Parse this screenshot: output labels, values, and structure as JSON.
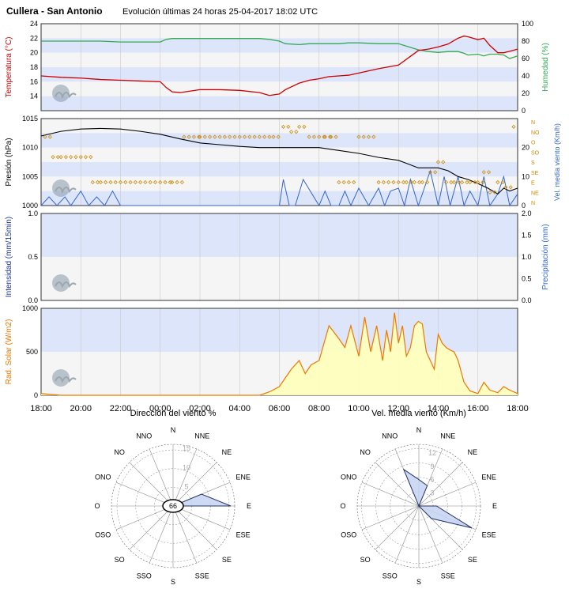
{
  "header": {
    "station": "Cullera - San Antonio",
    "subtitle": "Evolución últimas 24 horas 25-04-2017 18:02 UTC"
  },
  "colors": {
    "band_blue": "#dde5fb",
    "band_grey": "#f5f5f5",
    "temperature": "#cc0000",
    "humidity": "#33aa55",
    "pressure": "#000000",
    "wind_speed": "#3366cc",
    "wind_dir": "#cc8800",
    "solar_line": "#ee7700",
    "solar_fill": "#ffffbb",
    "rose_fill": "#c5d3f2",
    "rose_stroke": "#223366"
  },
  "x_ticks": [
    "18:00",
    "20:00",
    "22:00",
    "00:00",
    "02:00",
    "04:00",
    "06:00",
    "08:00",
    "10:00",
    "12:00",
    "14:00",
    "16:00",
    "18:00"
  ],
  "chart_data": [
    {
      "type": "line",
      "panel": "temp_humidity",
      "ylabel": "Temperatura (°C)",
      "ylabel2": "Humedad (%)",
      "ylim": [
        12,
        24
      ],
      "ylim2": [
        0,
        100
      ],
      "y_ticks": [
        "14",
        "16",
        "18",
        "20",
        "22",
        "24"
      ],
      "y2_ticks": [
        "0",
        "20",
        "40",
        "60",
        "80",
        "100"
      ],
      "x": [
        0,
        1,
        2,
        3,
        4,
        5,
        6,
        6.3,
        6.6,
        7,
        8,
        9,
        10,
        11,
        11.5,
        12,
        12.3,
        13,
        13.5,
        14,
        14.5,
        15,
        15.5,
        16,
        17,
        18,
        19,
        19.5,
        20,
        20.5,
        21,
        21.3,
        21.5,
        22,
        22.3,
        22.6,
        23,
        23.3,
        23.6,
        24
      ],
      "series": [
        {
          "name": "Temperatura",
          "axis": "left",
          "values": [
            16.8,
            16.6,
            16.5,
            16.3,
            16.2,
            16.1,
            16.0,
            15.2,
            14.6,
            14.5,
            14.9,
            14.9,
            14.8,
            14.5,
            14.1,
            14.3,
            14.9,
            15.8,
            16.2,
            16.4,
            16.7,
            16.8,
            16.9,
            17.2,
            17.8,
            18.3,
            20.3,
            20.5,
            20.8,
            21.2,
            22.0,
            22.3,
            22.2,
            21.8,
            22.0,
            21.0,
            20.0,
            20.0,
            20.2,
            20.5
          ]
        },
        {
          "name": "Humedad",
          "axis": "right",
          "values": [
            80,
            80,
            80,
            80,
            79,
            79,
            79,
            82,
            83,
            83,
            83,
            83,
            83,
            83,
            82,
            80,
            77,
            76,
            77,
            77,
            77,
            77,
            78,
            78,
            77,
            77,
            70,
            68,
            67,
            68,
            68,
            66,
            64,
            65,
            63,
            65,
            65,
            64,
            60,
            63
          ]
        }
      ]
    },
    {
      "type": "line",
      "panel": "pressure_wind",
      "ylabel": "Presión (hPa)",
      "ylabel2": "Vel. media viento (Km/h)",
      "ylim": [
        1000,
        1015
      ],
      "ylim2": [
        0,
        30
      ],
      "y_ticks": [
        "1000",
        "1005",
        "1010",
        "1015"
      ],
      "y2_ticks": [
        "0",
        "10",
        "20"
      ],
      "dir_labels": [
        "N",
        "NO",
        "O",
        "SO",
        "S",
        "SE",
        "E",
        "NE",
        "N"
      ],
      "x": [
        0,
        1,
        2,
        3,
        4,
        5,
        6,
        7,
        8,
        9,
        10,
        11,
        12,
        13,
        14,
        15,
        16,
        17,
        18,
        19,
        20,
        20.5,
        21,
        21.5,
        22,
        22.5,
        23,
        23.3,
        23.6,
        24
      ],
      "series": [
        {
          "name": "Presión",
          "axis": "left",
          "values": [
            1012.0,
            1012.8,
            1013.2,
            1013.3,
            1013.2,
            1012.8,
            1012.3,
            1011.5,
            1010.8,
            1010.5,
            1010.2,
            1010.0,
            1010.0,
            1010.0,
            1010.0,
            1009.5,
            1009.0,
            1008.3,
            1007.8,
            1006.5,
            1006.5,
            1006.0,
            1005.0,
            1004.5,
            1003.8,
            1003.0,
            1002.0,
            1003.0,
            1002.5,
            1003.0
          ]
        }
      ],
      "wind_speed": {
        "x": [
          0,
          0.4,
          0.8,
          1.2,
          1.5,
          2,
          2.4,
          2.8,
          3.2,
          3.6,
          4,
          6,
          8,
          10,
          12,
          12.2,
          12.5,
          12.8,
          13.2,
          14,
          14.3,
          14.6,
          15,
          15.3,
          15.6,
          16,
          16.5,
          17,
          17.3,
          17.6,
          18,
          18.3,
          18.6,
          19,
          19.3,
          19.6,
          20,
          20.3,
          20.6,
          21,
          21.3,
          21.6,
          22,
          22.3,
          22.6,
          23,
          23.3,
          23.6,
          24
        ],
        "values": [
          0,
          3,
          0,
          3,
          0,
          5,
          0,
          3,
          0,
          5,
          0,
          0,
          0,
          0,
          0,
          9,
          0,
          0,
          9,
          0,
          5,
          0,
          0,
          5,
          0,
          6,
          0,
          6,
          0,
          5,
          6,
          0,
          9,
          0,
          6,
          12,
          0,
          10,
          0,
          10,
          0,
          5,
          0,
          10,
          0,
          4,
          10,
          0,
          4
        ]
      },
      "wind_dir": {
        "x": [
          0.2,
          0.6,
          1.0,
          1.5,
          2.0,
          2.6,
          3.0,
          4.0,
          5.0,
          6.0,
          6.6,
          7.2,
          8.0,
          9.0,
          10.0,
          11.0,
          11.7,
          12.2,
          12.6,
          13.0,
          13.5,
          14.0,
          14.3,
          14.6,
          15.0,
          15.5,
          16.0,
          17.0,
          18.0,
          18.4,
          18.8,
          19.2,
          19.6,
          20.0,
          20.4,
          20.8,
          21.2,
          21.6,
          22.0,
          22.3,
          22.6,
          23.0,
          23.4,
          23.8
        ],
        "values": [
          1.5,
          3.5,
          3.5,
          3.5,
          3.5,
          6.0,
          6.0,
          6.0,
          6.0,
          6.0,
          6.0,
          1.5,
          1.5,
          1.5,
          1.5,
          1.5,
          1.5,
          0.5,
          1.0,
          0.5,
          1.5,
          1.5,
          1.5,
          1.5,
          6.0,
          6.0,
          1.5,
          6.0,
          6.0,
          6.0,
          6.0,
          6.0,
          5.0,
          4.0,
          6.0,
          6.0,
          6.0,
          6.0,
          6.0,
          5.0,
          7.0,
          6.0,
          6.5,
          0.5
        ]
      }
    },
    {
      "type": "line",
      "panel": "precipitation",
      "ylabel": "Intensidad (mm/15min)",
      "ylabel2": "Precipitación (mm)",
      "ylim": [
        0,
        1
      ],
      "ylim2": [
        0,
        2
      ],
      "y_ticks": [
        "0.0",
        "0.5",
        "1.0"
      ],
      "y2_ticks": [
        "0.0",
        "0.5",
        "1.0",
        "1.5",
        "2.0"
      ],
      "series": []
    },
    {
      "type": "area",
      "panel": "solar",
      "ylabel": "Rad. Solar (W/m2)",
      "ylim": [
        0,
        1000
      ],
      "y_ticks": [
        "0",
        "500",
        "1000"
      ],
      "x": [
        0,
        0.5,
        1,
        11,
        11.5,
        12,
        12.3,
        12.6,
        13,
        13.3,
        13.6,
        14,
        14.5,
        15,
        15.3,
        15.6,
        16,
        16.3,
        16.6,
        16.9,
        17.2,
        17.4,
        17.6,
        17.8,
        18.0,
        18.2,
        18.4,
        18.6,
        18.8,
        19.0,
        19.2,
        19.4,
        19.6,
        19.8,
        20.0,
        20.2,
        20.4,
        20.6,
        20.8,
        21.0,
        21.3,
        21.6,
        22.0,
        22.3,
        22.6,
        23.0,
        23.3,
        23.6,
        24
      ],
      "values": [
        20,
        10,
        0,
        0,
        40,
        100,
        200,
        300,
        400,
        250,
        350,
        400,
        800,
        650,
        550,
        800,
        450,
        900,
        500,
        800,
        400,
        750,
        500,
        950,
        600,
        800,
        450,
        550,
        800,
        850,
        820,
        500,
        400,
        300,
        700,
        600,
        550,
        520,
        500,
        400,
        150,
        50,
        20,
        150,
        60,
        30,
        100,
        60,
        20
      ],
      "series": []
    },
    {
      "type": "radar",
      "panel": "rose_dir",
      "title": "Dirección del viento %",
      "center_label": "66",
      "directions": [
        "N",
        "NNE",
        "NE",
        "ENE",
        "E",
        "ESE",
        "SE",
        "SSE",
        "S",
        "SSO",
        "SO",
        "OSO",
        "O",
        "ONO",
        "NO",
        "NNO"
      ],
      "ring_labels": [
        "5",
        "10",
        "15"
      ],
      "rmax": 16,
      "values": [
        0,
        0,
        0,
        8,
        15,
        0,
        0,
        0,
        0,
        0,
        0,
        0,
        0,
        0,
        0,
        0
      ]
    },
    {
      "type": "radar",
      "panel": "rose_speed",
      "title": "Vel. media viento (Km/h)",
      "directions": [
        "N",
        "NNE",
        "NE",
        "ENE",
        "E",
        "ESE",
        "SE",
        "SSE",
        "S",
        "SSO",
        "SO",
        "OSO",
        "O",
        "ONO",
        "NO",
        "NNO"
      ],
      "ring_labels": [
        "3",
        "6",
        "9",
        "12"
      ],
      "rmax": 14,
      "values": [
        6,
        5,
        0,
        0,
        4,
        13,
        4,
        0,
        0,
        0,
        0,
        0,
        0,
        0,
        0,
        9
      ]
    }
  ]
}
